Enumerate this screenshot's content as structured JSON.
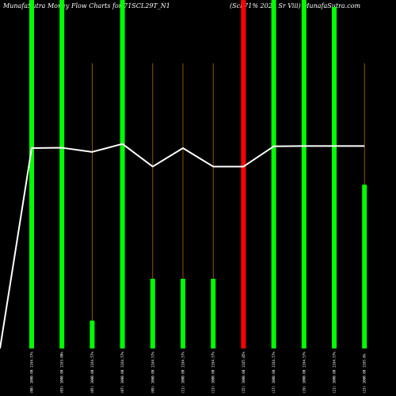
{
  "header": {
    "left": "MunafaSutra  Money Flow  Charts for 71SCL29T_N1",
    "right": "(Scl 71% 2029 Sr Viii) MunafaSutra.com"
  },
  "chart_data": {
    "type": "bar",
    "title": "MunafaSutra  Money Flow  Charts for 71SCL29T_N1",
    "subtitle": "(Scl 71% 2029 Sr Viii) MunafaSutra.com",
    "xlabel": "",
    "ylabel": "",
    "ylim": [
      0,
      100
    ],
    "categories": [
      "(00) 1000.00 1164.57%",
      "(03) 1000.00 1163.00%",
      "(05) 1000.00 1164.57%",
      "(07) 1000.00 1164.57%",
      "(09) 1000.00 1164.57%",
      "(11) 1000.00 1164.57%",
      "(13) 1000.00 1164.57%",
      "(15) 1000.00 1165.85%",
      "(17) 1000.00 1164.57%",
      "(19) 1000.00 1164.57%",
      "(21) 1000.00 1164.57%",
      "(23) 1000.00 1165.0%"
    ],
    "series": [
      {
        "values": [
          100,
          100,
          8,
          100,
          20,
          20,
          20,
          100,
          100,
          100,
          98,
          47
        ],
        "colors": [
          "#00ff00",
          "#00ff00",
          "#00ff00",
          "#00ff00",
          "#00ff00",
          "#00ff00",
          "#00ff00",
          "#ff0000",
          "#00ff00",
          "#00ff00",
          "#00ff00",
          "#00ff00"
        ]
      }
    ],
    "line": {
      "color": "#ffffff",
      "start": 0,
      "values": [
        57.5,
        57.6,
        56.4,
        58.7,
        52.2,
        57.5,
        52.2,
        52.2,
        58.0,
        58.1,
        58.1,
        58.1
      ]
    },
    "guide_color": "#b36b00",
    "grid": false,
    "legend": "none"
  }
}
